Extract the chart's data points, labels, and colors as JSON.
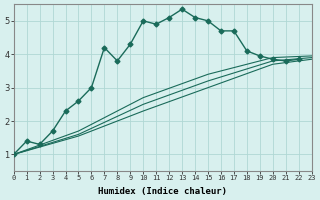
{
  "xlabel": "Humidex (Indice chaleur)",
  "ylabel": "",
  "background_color": "#d8f0ee",
  "grid_color": "#b0d8d4",
  "line_color": "#1a6b5a",
  "xlim": [
    0,
    23
  ],
  "ylim": [
    0.5,
    5.5
  ],
  "x_ticks": [
    0,
    1,
    2,
    3,
    4,
    5,
    6,
    7,
    8,
    9,
    10,
    11,
    12,
    13,
    14,
    15,
    16,
    17,
    18,
    19,
    20,
    21,
    22,
    23
  ],
  "y_ticks": [
    1,
    2,
    3,
    4,
    5
  ],
  "series1_x": [
    0,
    1,
    2,
    3,
    4,
    5,
    6,
    7,
    8,
    9,
    10,
    11,
    12,
    13,
    14,
    15,
    16,
    17,
    18,
    19,
    20,
    21,
    22
  ],
  "series1_y": [
    1.0,
    1.4,
    1.3,
    1.7,
    2.3,
    2.6,
    3.0,
    4.2,
    3.8,
    4.3,
    5.0,
    4.9,
    5.1,
    5.35,
    5.1,
    5.0,
    4.7,
    4.7,
    4.1,
    3.95,
    3.85,
    3.8,
    3.85
  ],
  "series2_x": [
    0,
    5,
    10,
    15,
    20,
    23
  ],
  "series2_y": [
    1.0,
    1.55,
    2.3,
    3.0,
    3.7,
    3.85
  ],
  "series3_x": [
    0,
    5,
    10,
    15,
    20,
    23
  ],
  "series3_y": [
    1.0,
    1.6,
    2.5,
    3.2,
    3.8,
    3.9
  ],
  "series4_x": [
    0,
    5,
    10,
    15,
    20,
    23
  ],
  "series4_y": [
    1.0,
    1.7,
    2.7,
    3.4,
    3.9,
    3.95
  ]
}
